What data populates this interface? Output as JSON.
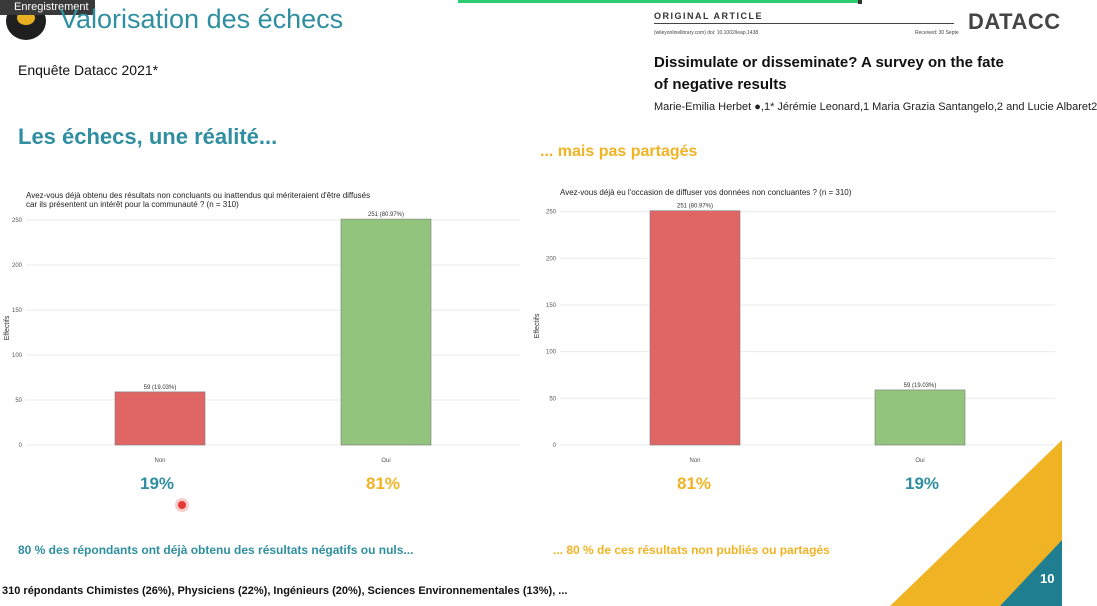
{
  "recording_badge": "Enregistrement",
  "slide_title": "Valorisation des échecs",
  "survey_label": "Enquête Datacc 2021*",
  "article": {
    "kicker": "ORIGINAL ARTICLE",
    "doi": "(wileyonlinelibrary.com) doi: 10.1002/leap.1438",
    "received": "Received: 30 Septe",
    "title": "Dissimulate or disseminate? A survey on the fate of negative results",
    "authors": "Marie-Emilia Herbet ●,1* Jérémie Leonard,1 Maria Grazia Santangelo,2 and Lucie Albaret2"
  },
  "brand": "DATACC",
  "left": {
    "heading": "Les échecs, une réalité...",
    "pct_non": "19%",
    "pct_oui": "81%",
    "caption": "80 % des répondants ont déjà obtenu des résultats négatifs ou nuls..."
  },
  "right": {
    "heading": "... mais pas partagés",
    "pct_non": "81%",
    "pct_oui": "19%",
    "caption": "... 80 % de ces résultats non publiés ou partagés"
  },
  "footer_note": "310 répondants Chimistes (26%), Physiciens (22%), Ingénieurs (20%), Sciences Environnementales (13%), ...",
  "page_number": "10",
  "colors": {
    "teal": "#2f8fa0",
    "gold": "#f0b324",
    "red": "#e06666",
    "green": "#93c47d"
  },
  "chart_data": [
    {
      "type": "bar",
      "title": "Avez-vous déjà obtenu des résultats non concluants ou inattendus qui mériteraient d'être diffusés car ils présentent un intérêt pour la communauté ? (n = 310)",
      "title_lines": [
        "Avez-vous déjà obtenu des résultats non concluants ou inattendus qui mériteraient d'être diffusés",
        "car ils présentent un intérêt pour la communauté ? (n = 310)"
      ],
      "categories": [
        "Non",
        "Oui"
      ],
      "values": [
        59,
        251
      ],
      "data_labels": [
        "59 (19.03%)",
        "251 (80.97%)"
      ],
      "ylabel": "Effectifs",
      "xlabel": "",
      "ylim": [
        0,
        260
      ],
      "yticks": [
        0,
        50,
        100,
        150,
        200,
        250
      ],
      "grid": true
    },
    {
      "type": "bar",
      "title": "Avez-vous déjà eu l'occasion de diffuser vos données non concluantes ? (n = 310)",
      "title_lines": [
        "Avez-vous déjà eu l'occasion de diffuser vos données non concluantes ? (n = 310)"
      ],
      "categories": [
        "Non",
        "Oui"
      ],
      "values": [
        251,
        59
      ],
      "data_labels": [
        "251 (80.97%)",
        "59 (19.03%)"
      ],
      "ylabel": "Effectifs",
      "xlabel": "",
      "ylim": [
        0,
        255
      ],
      "yticks": [
        0,
        50,
        100,
        150,
        200,
        250
      ],
      "grid": true
    }
  ]
}
